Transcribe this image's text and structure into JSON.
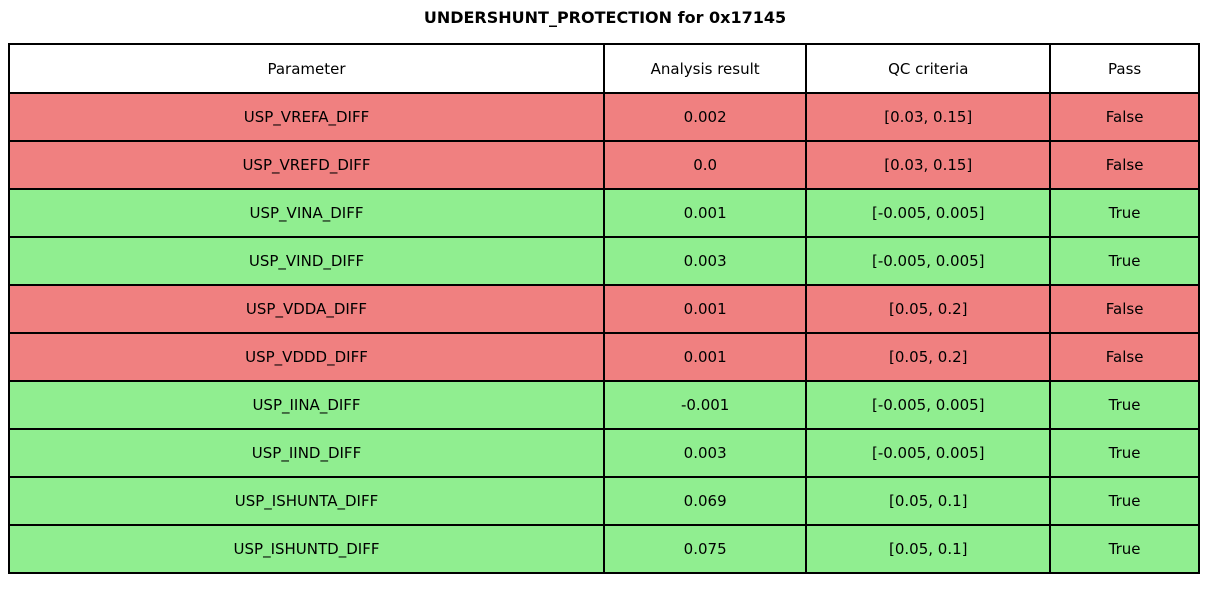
{
  "title": "UNDERSHUNT_PROTECTION for 0x17145",
  "colors": {
    "fail_row": "#f08080",
    "pass_row": "#90ee90",
    "header_row": "#ffffff",
    "border": "#000000",
    "text": "#000000"
  },
  "chart_data": {
    "type": "table",
    "title": "UNDERSHUNT_PROTECTION for 0x17145",
    "columns": [
      "Parameter",
      "Analysis result",
      "QC criteria",
      "Pass"
    ],
    "rows": [
      {
        "parameter": "USP_VREFA_DIFF",
        "analysis_result": "0.002",
        "qc_criteria": "[0.03, 0.15]",
        "pass": "False",
        "status": "fail"
      },
      {
        "parameter": "USP_VREFD_DIFF",
        "analysis_result": "0.0",
        "qc_criteria": "[0.03, 0.15]",
        "pass": "False",
        "status": "fail"
      },
      {
        "parameter": "USP_VINA_DIFF",
        "analysis_result": "0.001",
        "qc_criteria": "[-0.005, 0.005]",
        "pass": "True",
        "status": "pass"
      },
      {
        "parameter": "USP_VIND_DIFF",
        "analysis_result": "0.003",
        "qc_criteria": "[-0.005, 0.005]",
        "pass": "True",
        "status": "pass"
      },
      {
        "parameter": "USP_VDDA_DIFF",
        "analysis_result": "0.001",
        "qc_criteria": "[0.05, 0.2]",
        "pass": "False",
        "status": "fail"
      },
      {
        "parameter": "USP_VDDD_DIFF",
        "analysis_result": "0.001",
        "qc_criteria": "[0.05, 0.2]",
        "pass": "False",
        "status": "fail"
      },
      {
        "parameter": "USP_IINA_DIFF",
        "analysis_result": "-0.001",
        "qc_criteria": "[-0.005, 0.005]",
        "pass": "True",
        "status": "pass"
      },
      {
        "parameter": "USP_IIND_DIFF",
        "analysis_result": "0.003",
        "qc_criteria": "[-0.005, 0.005]",
        "pass": "True",
        "status": "pass"
      },
      {
        "parameter": "USP_ISHUNTA_DIFF",
        "analysis_result": "0.069",
        "qc_criteria": "[0.05, 0.1]",
        "pass": "True",
        "status": "pass"
      },
      {
        "parameter": "USP_ISHUNTD_DIFF",
        "analysis_result": "0.075",
        "qc_criteria": "[0.05, 0.1]",
        "pass": "True",
        "status": "pass"
      }
    ],
    "row_colors": {
      "fail": "#f08080",
      "pass": "#90ee90"
    },
    "legend_position": "none",
    "grid": false
  }
}
